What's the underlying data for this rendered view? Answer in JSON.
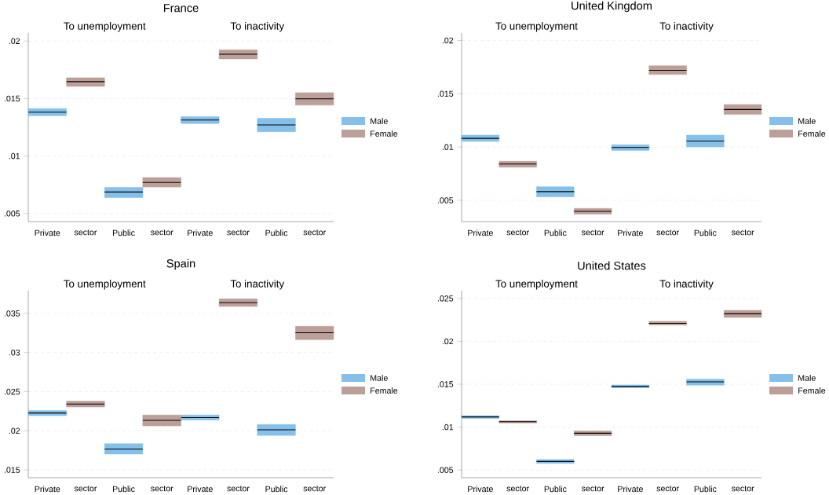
{
  "chart_data": [
    {
      "type": "box",
      "title": "France",
      "annotations": [
        "To unemployment",
        "To inactivity"
      ],
      "categories": [
        "Private",
        "sector",
        "Public",
        "sector",
        "Private",
        "sector",
        "Public",
        "sector"
      ],
      "series": [
        {
          "name": "Male",
          "color": "#85c0ea",
          "boxes": [
            {
              "low": 0.01351,
              "q1": 0.01351,
              "median": 0.01381,
              "q3": 0.01413,
              "high": 0.01413
            },
            null,
            {
              "low": 0.00638,
              "q1": 0.00638,
              "median": 0.00687,
              "q3": 0.00728,
              "high": 0.00728
            },
            null,
            {
              "low": 0.01283,
              "q1": 0.01283,
              "median": 0.01313,
              "q3": 0.01343,
              "high": 0.01343
            },
            null,
            {
              "low": 0.01211,
              "q1": 0.01211,
              "median": 0.0127,
              "q3": 0.01328,
              "high": 0.01328
            },
            null
          ]
        },
        {
          "name": "Female",
          "color": "#bc9f98",
          "boxes": [
            null,
            {
              "low": 0.01606,
              "q1": 0.01606,
              "median": 0.01647,
              "q3": 0.01681,
              "high": 0.01681
            },
            null,
            {
              "low": 0.0073,
              "q1": 0.0073,
              "median": 0.0077,
              "q3": 0.00813,
              "high": 0.00813
            },
            null,
            {
              "low": 0.01845,
              "q1": 0.01845,
              "median": 0.01885,
              "q3": 0.01923,
              "high": 0.01923
            },
            null,
            {
              "low": 0.01443,
              "q1": 0.01443,
              "median": 0.01498,
              "q3": 0.01551,
              "high": 0.01551
            }
          ]
        }
      ],
      "ylim": [
        0.0043,
        0.0207
      ],
      "yticks": [
        {
          "value": 0.005,
          "label": ".005"
        },
        {
          "value": 0.01,
          "label": ".01"
        },
        {
          "value": 0.015,
          "label": ".015"
        },
        {
          "value": 0.02,
          "label": ".02"
        }
      ],
      "grid": "y",
      "legend": "right"
    },
    {
      "type": "box",
      "title": "United Kingdom",
      "annotations": [
        "To unemployment",
        "To inactivity"
      ],
      "categories": [
        "Private",
        "sector",
        "Public",
        "sector",
        "Private",
        "sector",
        "Public",
        "sector"
      ],
      "series": [
        {
          "name": "Male",
          "color": "#85c0ea",
          "boxes": [
            {
              "low": 0.01053,
              "q1": 0.01053,
              "median": 0.01081,
              "q3": 0.01111,
              "high": 0.01111
            },
            null,
            {
              "low": 0.00532,
              "q1": 0.00532,
              "median": 0.00581,
              "q3": 0.00627,
              "high": 0.00627
            },
            null,
            {
              "low": 0.00968,
              "q1": 0.00968,
              "median": 0.00995,
              "q3": 0.01021,
              "high": 0.01021
            },
            null,
            {
              "low": 0.01,
              "q1": 0.01,
              "median": 0.01056,
              "q3": 0.01111,
              "high": 0.01111
            },
            null
          ]
        },
        {
          "name": "Female",
          "color": "#bc9f98",
          "boxes": [
            null,
            {
              "low": 0.0081,
              "q1": 0.0081,
              "median": 0.0084,
              "q3": 0.00866,
              "high": 0.00866
            },
            null,
            {
              "low": 0.0037,
              "q1": 0.0037,
              "median": 0.00396,
              "q3": 0.00424,
              "high": 0.00424
            },
            null,
            {
              "low": 0.01681,
              "q1": 0.01681,
              "median": 0.0172,
              "q3": 0.01762,
              "high": 0.01762
            },
            null,
            {
              "low": 0.01306,
              "q1": 0.01306,
              "median": 0.01352,
              "q3": 0.01398,
              "high": 0.01398
            }
          ]
        }
      ],
      "ylim": [
        0.003,
        0.0207
      ],
      "yticks": [
        {
          "value": 0.005,
          "label": ".005"
        },
        {
          "value": 0.01,
          "label": ".01"
        },
        {
          "value": 0.015,
          "label": ".015"
        },
        {
          "value": 0.02,
          "label": ".02"
        }
      ],
      "grid": "y",
      "legend": "right"
    },
    {
      "type": "box",
      "title": "Spain",
      "annotations": [
        "To unemployment",
        "To inactivity"
      ],
      "categories": [
        "Private",
        "sector",
        "Public",
        "sector",
        "Private",
        "sector",
        "Public",
        "sector"
      ],
      "series": [
        {
          "name": "Male",
          "color": "#85c0ea",
          "boxes": [
            {
              "low": 0.02193,
              "q1": 0.02193,
              "median": 0.02227,
              "q3": 0.02258,
              "high": 0.02258
            },
            null,
            {
              "low": 0.01702,
              "q1": 0.01702,
              "median": 0.01767,
              "q3": 0.01835,
              "high": 0.01835
            },
            null,
            {
              "low": 0.02137,
              "q1": 0.02137,
              "median": 0.02168,
              "q3": 0.02202,
              "high": 0.02202
            },
            null,
            {
              "low": 0.01941,
              "q1": 0.01941,
              "median": 0.02012,
              "q3": 0.02081,
              "high": 0.02081
            },
            null
          ]
        },
        {
          "name": "Female",
          "color": "#bc9f98",
          "boxes": [
            null,
            {
              "low": 0.02304,
              "q1": 0.02304,
              "median": 0.02342,
              "q3": 0.02379,
              "high": 0.02379
            },
            null,
            {
              "low": 0.02062,
              "q1": 0.02062,
              "median": 0.02134,
              "q3": 0.02202,
              "high": 0.02202
            },
            null,
            {
              "low": 0.0359,
              "q1": 0.0359,
              "median": 0.03637,
              "q3": 0.03686,
              "high": 0.03686
            },
            null,
            {
              "low": 0.03165,
              "q1": 0.03165,
              "median": 0.03252,
              "q3": 0.03335,
              "high": 0.03335
            }
          ]
        }
      ],
      "ylim": [
        0.014,
        0.0379
      ],
      "yticks": [
        {
          "value": 0.015,
          "label": ".015"
        },
        {
          "value": 0.02,
          "label": ".02"
        },
        {
          "value": 0.025,
          "label": ".025"
        },
        {
          "value": 0.03,
          "label": ".03"
        },
        {
          "value": 0.035,
          "label": ".035"
        }
      ],
      "grid": "y",
      "legend": "right"
    },
    {
      "type": "box",
      "title": "United States",
      "annotations": [
        "To unemployment",
        "To inactivity"
      ],
      "categories": [
        "Private",
        "sector",
        "Public",
        "sector",
        "Private",
        "sector",
        "Public",
        "sector"
      ],
      "series": [
        {
          "name": "Male",
          "color": "#85c0ea",
          "boxes": [
            {
              "low": 0.01102,
              "q1": 0.01102,
              "median": 0.01119,
              "q3": 0.01134,
              "high": 0.01134
            },
            null,
            {
              "low": 0.00577,
              "q1": 0.00577,
              "median": 0.00599,
              "q3": 0.00622,
              "high": 0.00622
            },
            null,
            {
              "low": 0.0146,
              "q1": 0.0146,
              "median": 0.01474,
              "q3": 0.01491,
              "high": 0.01491
            },
            null,
            {
              "low": 0.01489,
              "q1": 0.01489,
              "median": 0.01528,
              "q3": 0.0156,
              "high": 0.0156
            },
            null
          ]
        },
        {
          "name": "Female",
          "color": "#bc9f98",
          "boxes": [
            null,
            {
              "low": 0.01048,
              "q1": 0.01048,
              "median": 0.01063,
              "q3": 0.01074,
              "high": 0.01074
            },
            null,
            {
              "low": 0.00901,
              "q1": 0.00901,
              "median": 0.00929,
              "q3": 0.00955,
              "high": 0.00955
            },
            null,
            {
              "low": 0.0219,
              "q1": 0.0219,
              "median": 0.0221,
              "q3": 0.02233,
              "high": 0.02233
            },
            null,
            {
              "low": 0.02278,
              "q1": 0.02278,
              "median": 0.02321,
              "q3": 0.02361,
              "high": 0.02361
            }
          ]
        }
      ],
      "ylim": [
        0.0041,
        0.0259
      ],
      "yticks": [
        {
          "value": 0.005,
          "label": ".005"
        },
        {
          "value": 0.01,
          "label": ".01"
        },
        {
          "value": 0.015,
          "label": ".015"
        },
        {
          "value": 0.02,
          "label": ".02"
        },
        {
          "value": 0.025,
          "label": ".025"
        }
      ],
      "grid": "y",
      "legend": "right"
    }
  ]
}
